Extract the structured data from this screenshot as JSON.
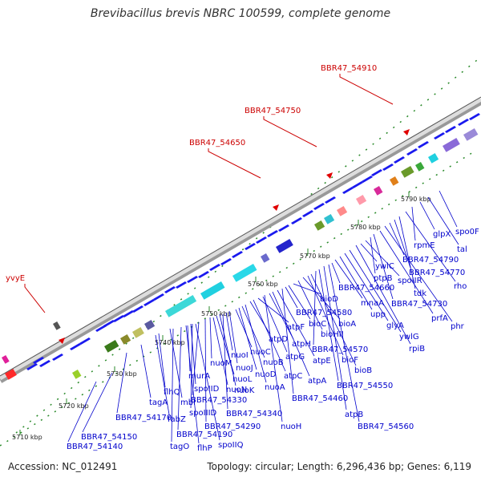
{
  "title": "Brevibacillus brevis NBRC 100599, complete genome",
  "footer": {
    "accession_label": "Accession:",
    "accession": "NC_012491",
    "summary": "Topology: circular; Length: 6,296,436 bp; Genes: 6,119"
  },
  "colors": {
    "backbone": "#777777",
    "gene_forward": "#1a1aee",
    "gene_label": "#0000cc",
    "highlight": "#cc0000",
    "dot_track": "#2a8a2a"
  },
  "ticks": [
    "5710 kbp",
    "5720 kbp",
    "5730 kbp",
    "5740 kbp",
    "5750 kbp",
    "5760 kbp",
    "5770 kbp",
    "5780 kbp",
    "5790 kbp"
  ],
  "highlights": [
    "BBR47_54910",
    "BBR47_54750",
    "BBR47_54650",
    "yvyE"
  ],
  "gene_labels": [
    "BBR47_54150",
    "BBR47_54140",
    "BBR47_54170",
    "tagA",
    "fabZ",
    "flhQ",
    "mbl",
    "tagO",
    "BBR47_54190",
    "flhP",
    "murA",
    "spoIID",
    "spoIIID",
    "spoIIQ",
    "BBR47_54330",
    "BBR47_54290",
    "nuoM",
    "nuoN",
    "nuoL",
    "nuoK",
    "BBR47_54340",
    "nuoI",
    "nuoJ",
    "nuoC",
    "nuoD",
    "nuoB",
    "nuoA",
    "atpD",
    "atpC",
    "atpF",
    "atpG",
    "nuoH",
    "atpH",
    "atpA",
    "atpE",
    "BBR47_54460",
    "BBR47_54580",
    "bioC",
    "bioD",
    "bioHII",
    "bioA",
    "bioF",
    "bioB",
    "BBR47_54570",
    "BBR47_54550",
    "atpB",
    "BBR47_54560",
    "BBR47_54660",
    "mnaA",
    "upp",
    "glyA",
    "ywlG",
    "rpiB",
    "ywlC",
    "spoIIR",
    "ptpB",
    "BBR47_54730",
    "prfA",
    "phr",
    "BBR47_54790",
    "BBR47_54770",
    "tdk",
    "rho",
    "rpmE",
    "glpX",
    "tal",
    "spo0F"
  ]
}
